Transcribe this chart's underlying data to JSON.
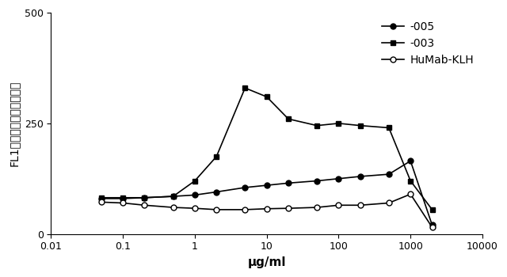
{
  "xlabel": "μg/ml",
  "ylabel": "FL1蛍光（恻意的な単位）",
  "ylim": [
    0,
    500
  ],
  "xlim": [
    0.01,
    10000
  ],
  "yticks": [
    0,
    250,
    500
  ],
  "xtick_vals": [
    0.01,
    0.1,
    1,
    10,
    100,
    1000,
    10000
  ],
  "xtick_labels": [
    "0.01",
    "0.1",
    "1",
    "10",
    "100",
    "1000",
    "10000"
  ],
  "series_005": {
    "label": "-005",
    "x": [
      0.05,
      0.1,
      0.2,
      0.5,
      1.0,
      2.0,
      5.0,
      10.0,
      20.0,
      50.0,
      100.0,
      200.0,
      500.0,
      1000.0,
      2000.0
    ],
    "y": [
      80,
      80,
      82,
      85,
      88,
      95,
      105,
      110,
      115,
      120,
      125,
      130,
      135,
      165,
      20
    ]
  },
  "series_003": {
    "label": "-003",
    "x": [
      0.05,
      0.1,
      0.2,
      0.5,
      1.0,
      2.0,
      5.0,
      10.0,
      20.0,
      50.0,
      100.0,
      200.0,
      500.0,
      1000.0,
      2000.0
    ],
    "y": [
      82,
      82,
      82,
      85,
      120,
      175,
      330,
      310,
      260,
      245,
      250,
      245,
      240,
      120,
      55
    ]
  },
  "series_klh": {
    "label": "HuMab-KLH",
    "x": [
      0.05,
      0.1,
      0.2,
      0.5,
      1.0,
      2.0,
      5.0,
      10.0,
      20.0,
      50.0,
      100.0,
      200.0,
      500.0,
      1000.0,
      2000.0
    ],
    "y": [
      72,
      70,
      65,
      60,
      58,
      55,
      55,
      57,
      58,
      60,
      65,
      65,
      70,
      90,
      15
    ]
  },
  "line_color": "#000000",
  "bg_color": "#ffffff",
  "marker_size": 5,
  "line_width": 1.2
}
